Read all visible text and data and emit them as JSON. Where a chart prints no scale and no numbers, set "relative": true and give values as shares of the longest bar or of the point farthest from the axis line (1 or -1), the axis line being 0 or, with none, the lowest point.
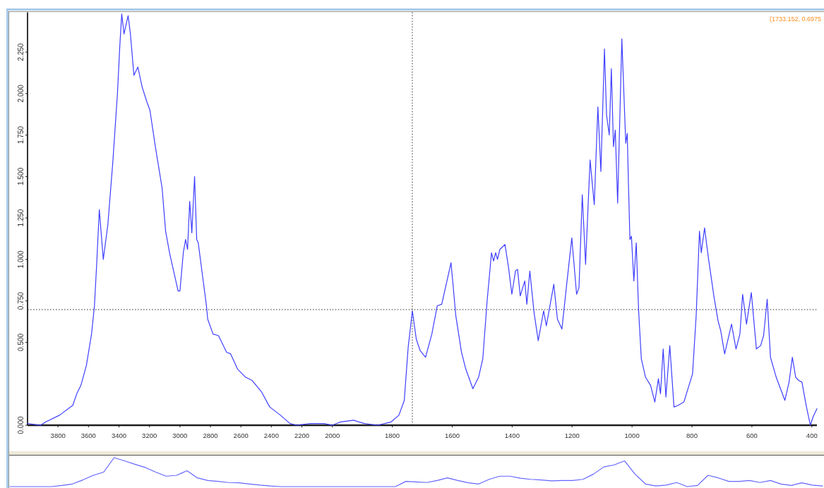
{
  "chart_data": [
    {
      "type": "line",
      "xlim": [
        4000,
        2000
      ],
      "xticks": [
        3800,
        3600,
        3400,
        3200,
        3000,
        2800,
        2600,
        2400,
        2200,
        2000
      ],
      "ylim": [
        0,
        2.49
      ],
      "yticks": [
        {
          "value": 0,
          "label": "0.000"
        },
        {
          "value": 0.5,
          "label": "0.500"
        },
        {
          "value": 0.75,
          "label": "0.750"
        },
        {
          "value": 1,
          "label": "1.000"
        },
        {
          "value": 1.25,
          "label": "1.250"
        },
        {
          "value": 1.5,
          "label": "1.500"
        },
        {
          "value": 1.75,
          "label": "1.750"
        },
        {
          "value": 2,
          "label": "2.000"
        },
        {
          "value": 2.25,
          "label": "2.250"
        }
      ],
      "color": "#3f3fff",
      "x": [
        4000,
        3915,
        3880,
        3791,
        3703,
        3677,
        3650,
        3614,
        3580,
        3561,
        3547,
        3529,
        3503,
        3473,
        3441,
        3410,
        3395,
        3382,
        3367,
        3340,
        3325,
        3302,
        3276,
        3248,
        3217,
        3197,
        3163,
        3117,
        3094,
        3066,
        3012,
        3000,
        2978,
        2963,
        2950,
        2936,
        2922,
        2904,
        2890,
        2880,
        2853,
        2826,
        2818,
        2783,
        2747,
        2694,
        2667,
        2623,
        2570,
        2526,
        2464,
        2411,
        2340,
        2278,
        2233,
        2146,
        2054,
        2000
      ],
      "values": [
        0.01,
        0,
        0.02,
        0.06,
        0.12,
        0.19,
        0.24,
        0.36,
        0.55,
        0.72,
        0.96,
        1.3,
        1,
        1.21,
        1.58,
        2,
        2.28,
        2.48,
        2.36,
        2.47,
        2.36,
        2.11,
        2.16,
        2.04,
        1.95,
        1.9,
        1.69,
        1.43,
        1.17,
        1.03,
        0.81,
        0.81,
        1.04,
        1.12,
        1.06,
        1.35,
        1.16,
        1.5,
        1.12,
        1.1,
        0.91,
        0.72,
        0.64,
        0.55,
        0.54,
        0.44,
        0.43,
        0.34,
        0.29,
        0.27,
        0.2,
        0.11,
        0.06,
        0.01,
        0,
        0.01,
        0.01,
        0
      ],
      "ref_lines": [
        {
          "axis": "y",
          "value": 0.6975,
          "color": "#333333",
          "line_style": "dotted"
        }
      ]
    },
    {
      "type": "line",
      "xlim": [
        2000,
        383
      ],
      "xticks": [
        1800,
        1600,
        1400,
        1200,
        1000,
        800,
        600,
        400
      ],
      "ylim": [
        0,
        2.49
      ],
      "tick_labels": "x",
      "color": "#3f3fff",
      "x": [
        2000,
        1973,
        1929,
        1893,
        1849,
        1804,
        1778,
        1760,
        1747,
        1733,
        1720,
        1707,
        1689,
        1668,
        1650,
        1635,
        1604,
        1588,
        1569,
        1555,
        1531,
        1512,
        1498,
        1484,
        1469,
        1462,
        1455,
        1449,
        1441,
        1424,
        1412,
        1401,
        1389,
        1382,
        1373,
        1358,
        1351,
        1341,
        1327,
        1313,
        1295,
        1286,
        1261,
        1249,
        1234,
        1218,
        1201,
        1185,
        1177,
        1166,
        1155,
        1140,
        1126,
        1114,
        1104,
        1092,
        1085,
        1076,
        1069,
        1062,
        1056,
        1048,
        1034,
        1021,
        1016,
        1012,
        1007,
        1002,
        994,
        986,
        978,
        969,
        955,
        938,
        924,
        912,
        905,
        896,
        887,
        874,
        860,
        846,
        827,
        798,
        786,
        775,
        769,
        758,
        746,
        727,
        713,
        704,
        691,
        668,
        653,
        640,
        631,
        618,
        602,
        585,
        571,
        561,
        549,
        538,
        519,
        490,
        476,
        465,
        454,
        444,
        433,
        419,
        405,
        396,
        383
      ],
      "values": [
        0,
        0.02,
        0.03,
        0.01,
        0,
        0.02,
        0.06,
        0.15,
        0.47,
        0.69,
        0.52,
        0.45,
        0.41,
        0.55,
        0.72,
        0.73,
        0.98,
        0.66,
        0.44,
        0.34,
        0.22,
        0.29,
        0.4,
        0.74,
        1.04,
        0.99,
        1.04,
        1,
        1.06,
        1.09,
        0.95,
        0.79,
        0.93,
        0.94,
        0.78,
        0.87,
        0.73,
        0.93,
        0.68,
        0.51,
        0.69,
        0.6,
        0.85,
        0.64,
        0.58,
        0.85,
        1.13,
        0.79,
        0.83,
        1.39,
        0.97,
        1.6,
        1.33,
        1.92,
        1.53,
        2.27,
        1.87,
        1.75,
        2.15,
        1.68,
        1.78,
        1.34,
        2.33,
        1.7,
        1.76,
        1.46,
        1.12,
        1.14,
        0.87,
        1.1,
        0.69,
        0.4,
        0.29,
        0.24,
        0.14,
        0.28,
        0.19,
        0.46,
        0.17,
        0.48,
        0.11,
        0.12,
        0.14,
        0.31,
        0.66,
        1.17,
        1.04,
        1.19,
        1.02,
        0.78,
        0.63,
        0.57,
        0.43,
        0.61,
        0.46,
        0.55,
        0.79,
        0.61,
        0.8,
        0.46,
        0.48,
        0.54,
        0.76,
        0.41,
        0.29,
        0.15,
        0.26,
        0.41,
        0.29,
        0.27,
        0.26,
        0.12,
        0,
        0.05,
        0.1
      ],
      "ref_lines": [
        {
          "axis": "x",
          "value": 1733.152,
          "color": "#333333",
          "line_style": "dotted"
        },
        {
          "axis": "y",
          "value": 0.6975,
          "color": "#333333",
          "line_style": "dotted"
        }
      ],
      "annotations": [
        "(1733.152, 0.6975"
      ]
    },
    {
      "type": "line",
      "relative": true,
      "color": "#6464ff",
      "categories": [
        null,
        null,
        null,
        null,
        null,
        null,
        null,
        null,
        null,
        null,
        null,
        null,
        null,
        null,
        null,
        null,
        null,
        null,
        null,
        null,
        null,
        null,
        null,
        null,
        null,
        null,
        null,
        null,
        null,
        null,
        null,
        null,
        null,
        null,
        null,
        null,
        null,
        null,
        null,
        null,
        null,
        null,
        null,
        null,
        null,
        null,
        null,
        null,
        null,
        null,
        null,
        null,
        null,
        null,
        null,
        null,
        null,
        null,
        null,
        null,
        null,
        null,
        null,
        null,
        null,
        null,
        null,
        null,
        null,
        null,
        null,
        null,
        null,
        null,
        null,
        null,
        null,
        null,
        null
      ],
      "values": [
        0,
        0,
        0,
        0,
        0,
        0.04,
        0.09,
        0.23,
        0.39,
        0.5,
        1,
        0.89,
        0.77,
        0.66,
        0.5,
        0.36,
        0.39,
        0.55,
        0.3,
        0.21,
        0.18,
        0.14,
        0.13,
        0.09,
        0.05,
        0.02,
        0,
        0,
        0,
        0,
        0,
        0,
        0,
        0,
        0,
        0,
        0,
        0,
        0.18,
        0.16,
        0.14,
        0.21,
        0.3,
        0.21,
        0.13,
        0.09,
        0.25,
        0.36,
        0.36,
        0.29,
        0.25,
        0.23,
        0.2,
        0.21,
        0.21,
        0.25,
        0.43,
        0.68,
        0.75,
        0.89,
        0.43,
        0.09,
        0.02,
        0.05,
        0.14,
        0,
        0.04,
        0.39,
        0.3,
        0.18,
        0.18,
        0.21,
        0.14,
        0.21,
        0.09,
        0.04,
        0.13,
        0.05,
        0.02
      ]
    }
  ]
}
